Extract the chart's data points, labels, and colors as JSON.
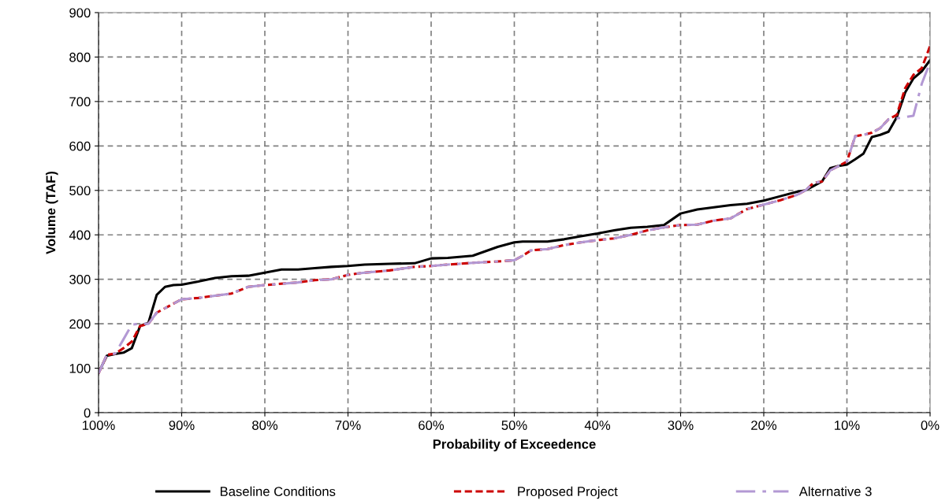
{
  "chart_data": {
    "type": "line",
    "xlabel": "Probability of Exceedence",
    "ylabel": "Volume (TAF)",
    "x": [
      100,
      99,
      98,
      97,
      96,
      95,
      94,
      93,
      92,
      91,
      90,
      88,
      86,
      84,
      82,
      80,
      78,
      76,
      74,
      72,
      70,
      68,
      65,
      62,
      60,
      58,
      55,
      52,
      50,
      49,
      48,
      46,
      44,
      42,
      40,
      38,
      36,
      34,
      32,
      30,
      28,
      26,
      24,
      22,
      20,
      18,
      16,
      15,
      14,
      13,
      12,
      11,
      10,
      9,
      8,
      7,
      6,
      5,
      4,
      3,
      2,
      1,
      0
    ],
    "series": [
      {
        "name": "Baseline Conditions",
        "color": "#000000",
        "line_style": "solid",
        "values": [
          90,
          128,
          132,
          135,
          145,
          195,
          202,
          265,
          283,
          287,
          288,
          295,
          303,
          307,
          308,
          315,
          322,
          322,
          325,
          328,
          330,
          333,
          335,
          336,
          347,
          348,
          353,
          373,
          383,
          385,
          385,
          385,
          390,
          397,
          403,
          410,
          416,
          418,
          422,
          448,
          457,
          462,
          467,
          470,
          477,
          487,
          497,
          500,
          510,
          520,
          550,
          555,
          558,
          570,
          583,
          620,
          625,
          632,
          665,
          720,
          752,
          768,
          793
        ]
      },
      {
        "name": "Proposed Project",
        "color": "#cc0000",
        "line_style": "dashed",
        "values": [
          88,
          130,
          133,
          145,
          160,
          195,
          200,
          225,
          235,
          245,
          255,
          258,
          263,
          268,
          283,
          287,
          290,
          293,
          298,
          300,
          310,
          315,
          320,
          328,
          330,
          333,
          337,
          340,
          343,
          353,
          365,
          368,
          377,
          383,
          388,
          392,
          400,
          410,
          417,
          422,
          423,
          432,
          437,
          458,
          468,
          478,
          490,
          500,
          517,
          520,
          545,
          555,
          565,
          622,
          625,
          630,
          640,
          660,
          670,
          730,
          760,
          775,
          825
        ]
      },
      {
        "name": "Alternative 3",
        "color": "#b399d4",
        "line_style": "dashdot",
        "values": [
          88,
          130,
          133,
          165,
          198,
          200,
          200,
          225,
          235,
          245,
          255,
          258,
          263,
          268,
          283,
          287,
          290,
          293,
          298,
          300,
          310,
          315,
          320,
          328,
          330,
          333,
          337,
          340,
          343,
          353,
          365,
          368,
          377,
          383,
          388,
          392,
          400,
          410,
          417,
          422,
          423,
          432,
          437,
          458,
          468,
          478,
          490,
          500,
          517,
          520,
          545,
          555,
          565,
          622,
          625,
          630,
          640,
          660,
          662,
          665,
          668,
          740,
          788
        ]
      }
    ],
    "xlim": [
      100,
      0
    ],
    "xticks": [
      {
        "value": 100,
        "label": "100%"
      },
      {
        "value": 90,
        "label": "90%"
      },
      {
        "value": 80,
        "label": "80%"
      },
      {
        "value": 70,
        "label": "70%"
      },
      {
        "value": 60,
        "label": "60%"
      },
      {
        "value": 50,
        "label": "50%"
      },
      {
        "value": 40,
        "label": "40%"
      },
      {
        "value": 30,
        "label": "30%"
      },
      {
        "value": 20,
        "label": "20%"
      },
      {
        "value": 10,
        "label": "10%"
      },
      {
        "value": 0,
        "label": "0%"
      }
    ],
    "ylim": [
      0,
      900
    ],
    "yticks": [
      0,
      100,
      200,
      300,
      400,
      500,
      600,
      700,
      800,
      900
    ],
    "grid": true,
    "legend": "bottom",
    "marker": "none"
  }
}
